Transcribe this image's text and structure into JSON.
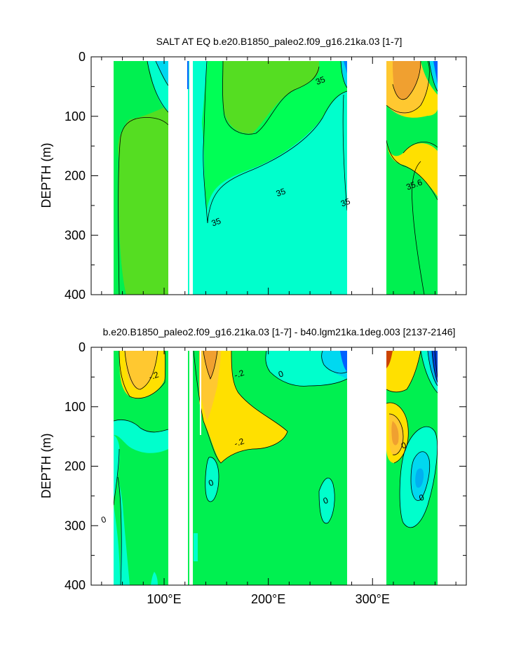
{
  "chart_data": [
    {
      "type": "contour",
      "title": "SALT AT EQ b.e20.B1850_paleo2.f09_g16.21ka.03 [1-7]",
      "ylabel": "DEPTH (m)",
      "xlabel": "",
      "x_ticks": [
        {
          "value": 100,
          "label": "100°E"
        },
        {
          "value": 200,
          "label": "200°E"
        },
        {
          "value": 300,
          "label": "300°E"
        }
      ],
      "y_ticks": [
        0,
        100,
        200,
        300,
        400
      ],
      "xlim": [
        30,
        390
      ],
      "ylim": [
        0,
        400
      ],
      "y_reversed": true,
      "contour_labels": [
        {
          "text": "35",
          "x": 250,
          "y": 40
        },
        {
          "text": "35",
          "x": 212,
          "y": 228
        },
        {
          "text": "35",
          "x": 274,
          "y": 245
        },
        {
          "text": "35",
          "x": 150,
          "y": 278
        },
        {
          "text": "35.6",
          "x": 340,
          "y": 215
        }
      ],
      "colors": {
        "fresh": "#33cc66",
        "mid": "#00ff55",
        "salty": "#00ffcc",
        "high": "#ffe000",
        "higher": "#ffc830",
        "highest": "#f0a030",
        "low": "#00d0f0"
      }
    },
    {
      "type": "contour",
      "title": "b.e20.B1850_paleo2.f09_g16.21ka.03 [1-7] - b40.lgm21ka.1deg.003 [2137-2146]",
      "ylabel": "DEPTH (m)",
      "xlabel": "",
      "x_ticks": [
        {
          "value": 100,
          "label": "100°E"
        },
        {
          "value": 200,
          "label": "200°E"
        },
        {
          "value": 300,
          "label": "300°E"
        }
      ],
      "y_ticks": [
        0,
        100,
        200,
        300,
        400
      ],
      "xlim": [
        30,
        390
      ],
      "ylim": [
        0,
        400
      ],
      "y_reversed": true,
      "contour_labels": [
        {
          "text": "-.2",
          "x": 90,
          "y": 48
        },
        {
          "text": "-.2",
          "x": 172,
          "y": 45
        },
        {
          "text": "-.2",
          "x": 172,
          "y": 160
        },
        {
          "text": "0",
          "x": 212,
          "y": 45
        },
        {
          "text": "0",
          "x": 145,
          "y": 228
        },
        {
          "text": "0",
          "x": 255,
          "y": 258
        },
        {
          "text": "0",
          "x": 42,
          "y": 290
        },
        {
          "text": "0",
          "x": 330,
          "y": 165
        },
        {
          "text": "0",
          "x": 347,
          "y": 253
        }
      ]
    }
  ]
}
